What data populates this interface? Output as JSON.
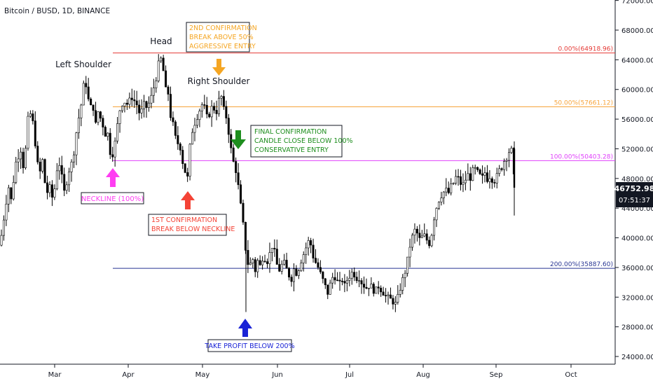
{
  "header": {
    "symbol": "Bitcoin / BUSD, 1D, BINANCE"
  },
  "price_tag": {
    "price": "46752.98",
    "countdown": "07:51:37"
  },
  "colors": {
    "up": "#26a69a",
    "down": "#000000",
    "fib_0": "#e53935",
    "fib_50": "#f7a43a",
    "fib_100": "#e040fb",
    "fib_200": "#283593",
    "head_shoulder_text": "#131722",
    "magenta": "#ff3df2",
    "red": "#f44336",
    "orange": "#f5a623",
    "green": "#1e8e1e",
    "blue": "#1a23d6"
  },
  "annotations": {
    "left_shoulder": "Left Shoulder",
    "head": "Head",
    "right_shoulder": "Right Shoulder",
    "neckline_box": "NECKLINE (100%)",
    "first_conf_line1": "1ST CONFIRMATION",
    "first_conf_line2": "BREAK BELOW NECKLINE",
    "second_conf_line1": "2ND CONFIRMATION",
    "second_conf_line2": "BREAK ABOVE 50%",
    "second_conf_line3": "AGGRESSIVE ENTRY",
    "final_conf_line1": "FINAL CONFIRMATION",
    "final_conf_line2": "CANDLE CLOSE BELOW 100%",
    "final_conf_line3": "CONSERVATIVE ENTRY",
    "take_profit": "TAKE PROFIT BELOW 200%"
  },
  "chart_data": {
    "type": "candlestick",
    "title": "Bitcoin / BUSD, 1D, BINANCE",
    "ylim": [
      24000,
      72000
    ],
    "y_ticks": [
      {
        "value": 24000,
        "label": "24000.00"
      },
      {
        "value": 28000,
        "label": "28000.00"
      },
      {
        "value": 32000,
        "label": "32000.00"
      },
      {
        "value": 36000,
        "label": "36000.00"
      },
      {
        "value": 40000,
        "label": "40000.00"
      },
      {
        "value": 44000,
        "label": "44000.00"
      },
      {
        "value": 48000,
        "label": "48000.00"
      },
      {
        "value": 52000,
        "label": "52000.00"
      },
      {
        "value": 56000,
        "label": "56000.00"
      },
      {
        "value": 60000,
        "label": "60000.00"
      },
      {
        "value": 64000,
        "label": "64000.00"
      },
      {
        "value": 68000,
        "label": "68000.00"
      },
      {
        "value": 72000,
        "label": "72000.00"
      }
    ],
    "x_ticks": [
      "Mar",
      "Apr",
      "May",
      "Jun",
      "Jul",
      "Aug",
      "Sep",
      "Oct"
    ],
    "fib_levels": [
      {
        "label": "0.00%(64918.96)",
        "value": 64918.96
      },
      {
        "label": "50.00%(57661.12)",
        "value": 57661.12
      },
      {
        "label": "100.00%(50403.28)",
        "value": 50403.28
      },
      {
        "label": "200.00%(35887.60)",
        "value": 35887.6
      }
    ],
    "last_price": 46752.98,
    "path_points": [
      [
        0,
        39000
      ],
      [
        6,
        43000
      ],
      [
        12,
        47000
      ],
      [
        16,
        45000
      ],
      [
        22,
        50000
      ],
      [
        30,
        52000
      ],
      [
        34,
        49000
      ],
      [
        40,
        56000
      ],
      [
        45,
        57000
      ],
      [
        50,
        53000
      ],
      [
        56,
        48000
      ],
      [
        60,
        51000
      ],
      [
        64,
        47500
      ],
      [
        68,
        46000
      ],
      [
        72,
        47000
      ],
      [
        76,
        44500
      ],
      [
        80,
        49000
      ],
      [
        85,
        50000
      ],
      [
        92,
        46000
      ],
      [
        98,
        49000
      ],
      [
        104,
        50500
      ],
      [
        110,
        55000
      ],
      [
        116,
        58000
      ],
      [
        120,
        61000
      ],
      [
        124,
        60500
      ],
      [
        128,
        57000
      ],
      [
        132,
        58500
      ],
      [
        136,
        55000
      ],
      [
        140,
        57000
      ],
      [
        146,
        55500
      ],
      [
        150,
        54000
      ],
      [
        154,
        54000
      ],
      [
        158,
        51000
      ],
      [
        162,
        51500
      ],
      [
        166,
        54000
      ],
      [
        170,
        57000
      ],
      [
        176,
        58500
      ],
      [
        182,
        58000
      ],
      [
        188,
        59000
      ],
      [
        195,
        58000
      ],
      [
        200,
        56500
      ],
      [
        205,
        58000
      ],
      [
        210,
        57500
      ],
      [
        216,
        59000
      ],
      [
        220,
        60500
      ],
      [
        224,
        62000
      ],
      [
        228,
        64500
      ],
      [
        232,
        63500
      ],
      [
        236,
        60000
      ],
      [
        240,
        59500
      ],
      [
        244,
        56000
      ],
      [
        248,
        55000
      ],
      [
        252,
        52500
      ],
      [
        256,
        53000
      ],
      [
        260,
        50500
      ],
      [
        264,
        49000
      ],
      [
        268,
        48000
      ],
      [
        272,
        53500
      ],
      [
        276,
        55000
      ],
      [
        280,
        56000
      ],
      [
        284,
        57000
      ],
      [
        288,
        58000
      ],
      [
        292,
        57500
      ],
      [
        296,
        56000
      ],
      [
        300,
        57000
      ],
      [
        304,
        58000
      ],
      [
        308,
        56500
      ],
      [
        312,
        58500
      ],
      [
        316,
        59000
      ],
      [
        320,
        57000
      ],
      [
        324,
        56000
      ],
      [
        328,
        53000
      ],
      [
        332,
        50500
      ],
      [
        336,
        49500
      ],
      [
        340,
        47000
      ],
      [
        344,
        44000
      ],
      [
        348,
        41000
      ],
      [
        352,
        37000
      ],
      [
        356,
        36000
      ],
      [
        360,
        37500
      ],
      [
        364,
        35500
      ],
      [
        368,
        37000
      ],
      [
        372,
        36000
      ],
      [
        376,
        38000
      ],
      [
        380,
        36500
      ],
      [
        384,
        37500
      ],
      [
        388,
        39000
      ],
      [
        392,
        38000
      ],
      [
        396,
        36000
      ],
      [
        400,
        35500
      ],
      [
        404,
        37000
      ],
      [
        408,
        36000
      ],
      [
        412,
        35000
      ],
      [
        416,
        34500
      ],
      [
        420,
        36000
      ],
      [
        424,
        35000
      ],
      [
        428,
        36500
      ],
      [
        432,
        37500
      ],
      [
        436,
        38500
      ],
      [
        440,
        39500
      ],
      [
        444,
        39000
      ],
      [
        448,
        37000
      ],
      [
        452,
        36500
      ],
      [
        456,
        35500
      ],
      [
        460,
        34500
      ],
      [
        464,
        33500
      ],
      [
        468,
        32500
      ],
      [
        472,
        34000
      ],
      [
        476,
        35000
      ],
      [
        480,
        34500
      ],
      [
        484,
        33500
      ],
      [
        488,
        34500
      ],
      [
        492,
        33500
      ],
      [
        496,
        34500
      ],
      [
        500,
        35000
      ],
      [
        504,
        35500
      ],
      [
        508,
        34500
      ],
      [
        512,
        34800
      ],
      [
        516,
        34000
      ],
      [
        520,
        33500
      ],
      [
        524,
        33200
      ],
      [
        528,
        33800
      ],
      [
        532,
        33000
      ],
      [
        536,
        32800
      ],
      [
        540,
        33500
      ],
      [
        544,
        33000
      ],
      [
        548,
        32500
      ],
      [
        552,
        32000
      ],
      [
        556,
        31800
      ],
      [
        560,
        31500
      ],
      [
        564,
        31000
      ],
      [
        568,
        32000
      ],
      [
        572,
        33500
      ],
      [
        576,
        34800
      ],
      [
        580,
        36000
      ],
      [
        584,
        38500
      ],
      [
        588,
        40000
      ],
      [
        592,
        41000
      ],
      [
        596,
        40500
      ],
      [
        600,
        39500
      ],
      [
        604,
        40500
      ],
      [
        608,
        40000
      ],
      [
        612,
        39000
      ],
      [
        616,
        40500
      ],
      [
        620,
        43000
      ],
      [
        624,
        44500
      ],
      [
        628,
        45500
      ],
      [
        632,
        46000
      ],
      [
        636,
        46500
      ],
      [
        640,
        46000
      ],
      [
        644,
        47000
      ],
      [
        648,
        47500
      ],
      [
        652,
        48500
      ],
      [
        656,
        47500
      ],
      [
        660,
        47000
      ],
      [
        664,
        47800
      ],
      [
        668,
        48500
      ],
      [
        672,
        48000
      ],
      [
        676,
        49500
      ],
      [
        680,
        49000
      ],
      [
        684,
        48500
      ],
      [
        688,
        48000
      ],
      [
        692,
        48800
      ],
      [
        696,
        47800
      ],
      [
        700,
        48500
      ],
      [
        704,
        47500
      ],
      [
        708,
        48000
      ],
      [
        712,
        49000
      ],
      [
        716,
        49500
      ],
      [
        720,
        50500
      ],
      [
        724,
        51000
      ],
      [
        728,
        52000
      ],
      [
        732,
        51500
      ],
      [
        734,
        46753
      ]
    ],
    "up_color": "#26a69a",
    "down_color": "#000000"
  }
}
